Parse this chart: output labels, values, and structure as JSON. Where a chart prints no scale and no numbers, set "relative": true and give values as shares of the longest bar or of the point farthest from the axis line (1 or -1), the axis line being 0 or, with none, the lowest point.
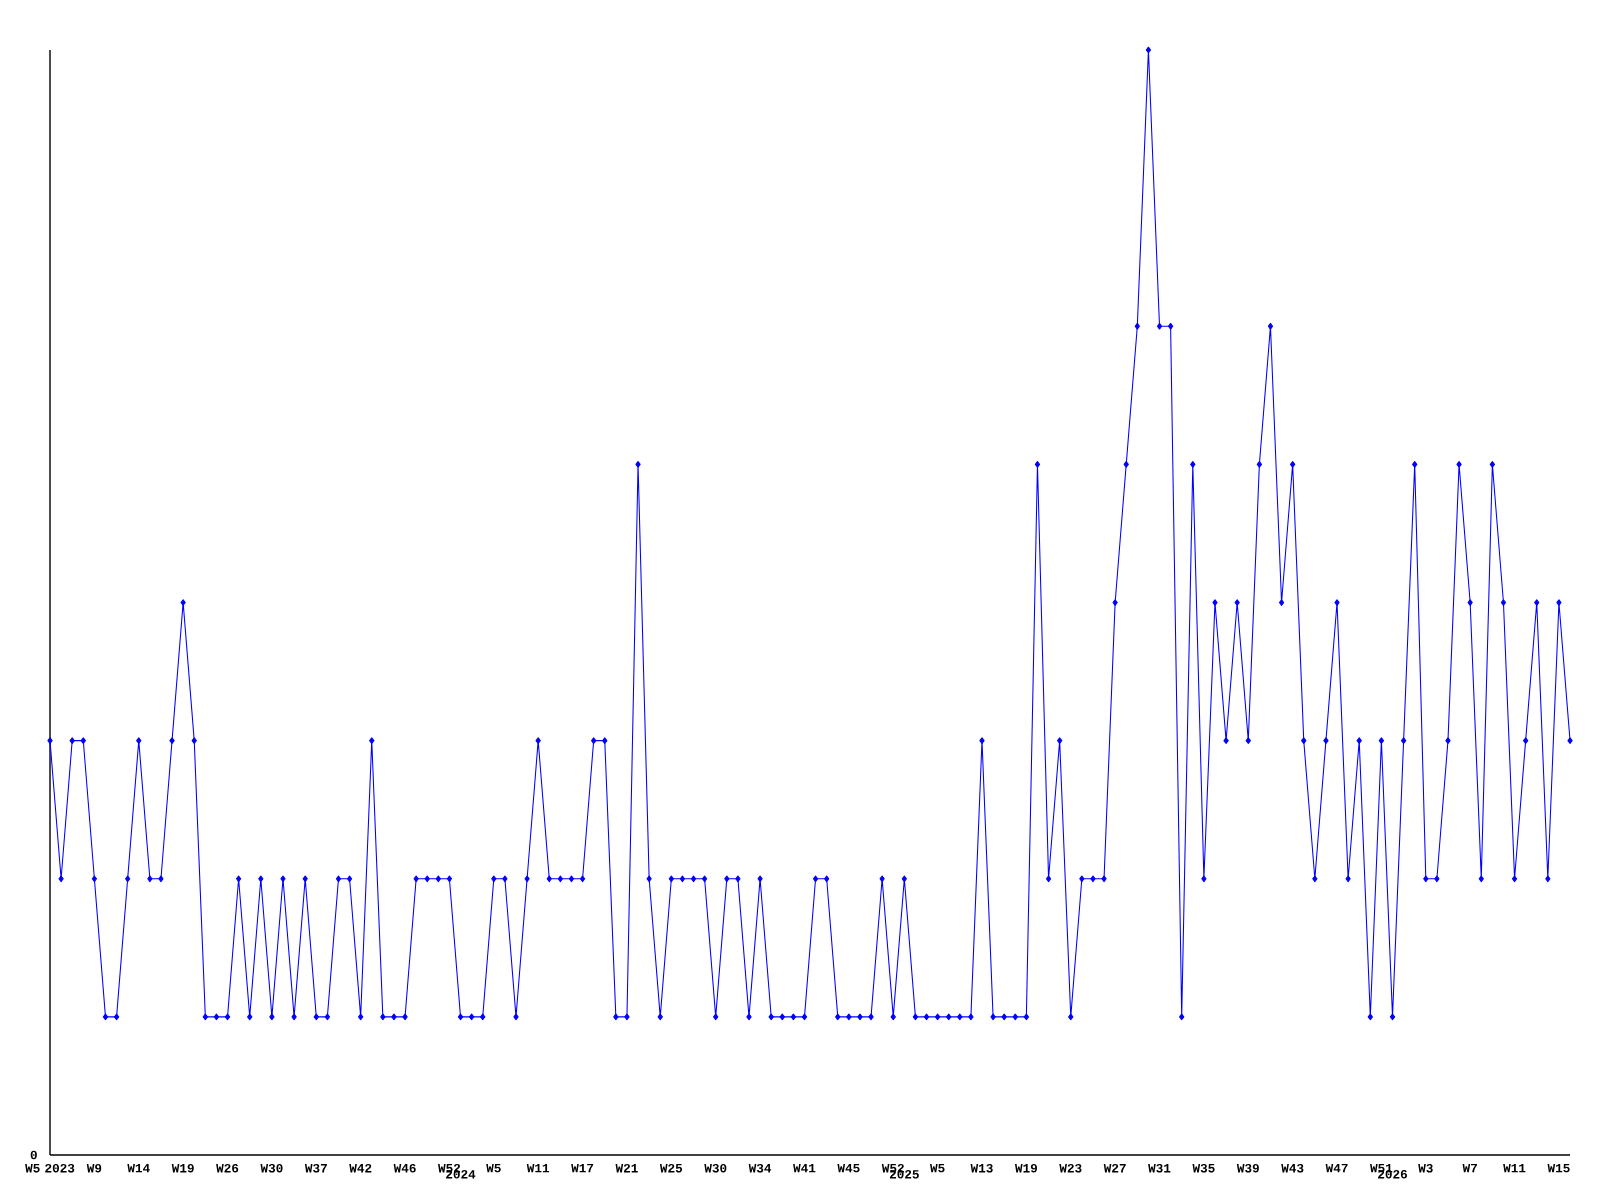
{
  "chart_data": {
    "type": "line",
    "relative": true,
    "color": "#0000ff",
    "marker": "diamond",
    "annotations": [
      "0"
    ],
    "categories": [
      "W5 2023",
      null,
      null,
      null,
      "W9",
      null,
      null,
      null,
      "W14",
      null,
      null,
      null,
      "W19",
      null,
      null,
      null,
      "W26",
      null,
      null,
      null,
      "W30",
      null,
      null,
      null,
      "W37",
      null,
      null,
      null,
      "W42",
      null,
      null,
      null,
      "W46",
      null,
      null,
      null,
      "W52",
      "2024",
      null,
      null,
      "W5",
      null,
      null,
      null,
      "W11",
      null,
      null,
      null,
      "W17",
      null,
      null,
      null,
      "W21",
      null,
      null,
      null,
      "W25",
      null,
      null,
      null,
      "W30",
      null,
      null,
      null,
      "W34",
      null,
      null,
      null,
      "W41",
      null,
      null,
      null,
      "W45",
      null,
      null,
      null,
      "W52",
      "2025",
      null,
      null,
      "W5",
      null,
      null,
      null,
      "W13",
      null,
      null,
      null,
      "W19",
      null,
      null,
      null,
      "W23",
      null,
      null,
      null,
      "W27",
      null,
      null,
      null,
      "W31",
      null,
      null,
      null,
      "W35",
      null,
      null,
      null,
      "W39",
      null,
      null,
      null,
      "W43",
      null,
      null,
      null,
      "W47",
      null,
      null,
      null,
      "W51",
      "2026",
      null,
      null,
      "W3",
      null,
      null,
      null,
      "W7",
      null,
      null,
      null,
      "W11",
      null,
      null,
      null,
      "W15",
      null
    ],
    "values": [
      0.375,
      0.25,
      0.375,
      0.375,
      0.25,
      0.125,
      0.125,
      0.25,
      0.375,
      0.25,
      0.25,
      0.375,
      0.5,
      0.375,
      0.125,
      0.125,
      0.125,
      0.25,
      0.125,
      0.25,
      0.125,
      0.25,
      0.125,
      0.25,
      0.125,
      0.125,
      0.25,
      0.25,
      0.125,
      0.375,
      0.125,
      0.125,
      0.125,
      0.25,
      0.25,
      0.25,
      0.25,
      0.125,
      0.125,
      0.125,
      0.25,
      0.25,
      0.125,
      0.25,
      0.375,
      0.25,
      0.25,
      0.25,
      0.25,
      0.375,
      0.375,
      0.125,
      0.125,
      0.625,
      0.25,
      0.125,
      0.25,
      0.25,
      0.25,
      0.25,
      0.125,
      0.25,
      0.25,
      0.125,
      0.25,
      0.125,
      0.125,
      0.125,
      0.125,
      0.25,
      0.25,
      0.125,
      0.125,
      0.125,
      0.125,
      0.25,
      0.125,
      0.25,
      0.125,
      0.125,
      0.125,
      0.125,
      0.125,
      0.125,
      0.375,
      0.125,
      0.125,
      0.125,
      0.125,
      0.625,
      0.25,
      0.375,
      0.125,
      0.25,
      0.25,
      0.25,
      0.5,
      0.625,
      0.75,
      1,
      0.75,
      0.75,
      0.125,
      0.625,
      0.25,
      0.5,
      0.375,
      0.5,
      0.375,
      0.625,
      0.75,
      0.5,
      0.625,
      0.375,
      0.25,
      0.375,
      0.5,
      0.25,
      0.375,
      0.125,
      0.375,
      0.125,
      0.375,
      0.625,
      0.25,
      0.25,
      0.375,
      0.625,
      0.5,
      0.25,
      0.625,
      0.5,
      0.25,
      0.375,
      0.5,
      0.25,
      0.5,
      0.375
    ]
  }
}
